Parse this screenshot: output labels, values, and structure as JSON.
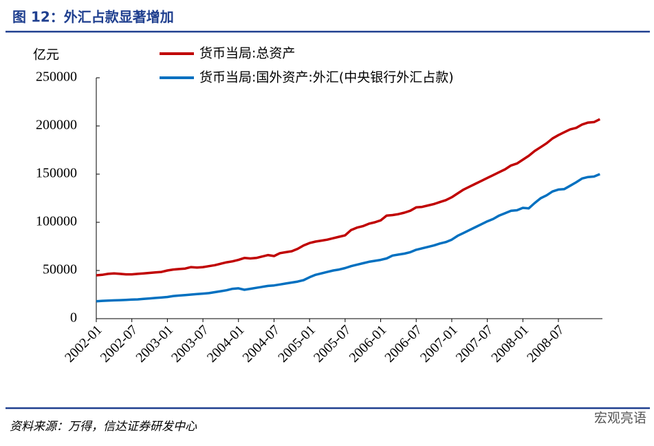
{
  "header": {
    "title": "图 12：外汇占款显著增加"
  },
  "footer": {
    "source": "资料来源：万得，信达证券研发中心",
    "watermark": "宏观亮语"
  },
  "chart_data": {
    "type": "line",
    "y_label": "亿元",
    "categories": [
      "2002-01",
      null,
      null,
      null,
      null,
      null,
      "2002-07",
      null,
      null,
      null,
      null,
      null,
      "2003-01",
      null,
      null,
      null,
      null,
      null,
      "2003-07",
      null,
      null,
      null,
      null,
      null,
      "2004-01",
      null,
      null,
      null,
      null,
      null,
      "2004-07",
      null,
      null,
      null,
      null,
      null,
      "2005-01",
      null,
      null,
      null,
      null,
      null,
      "2005-07",
      null,
      null,
      null,
      null,
      null,
      "2006-01",
      null,
      null,
      null,
      null,
      null,
      "2006-07",
      null,
      null,
      null,
      null,
      null,
      "2007-01",
      null,
      null,
      null,
      null,
      null,
      "2007-07",
      null,
      null,
      null,
      null,
      null,
      "2008-01",
      null,
      null,
      null,
      null,
      null,
      "2008-07",
      null,
      null,
      null,
      null,
      null,
      null,
      null
    ],
    "series": [
      {
        "name": "货币当局:总资产",
        "color": "#c00000",
        "values": [
          45000,
          45500,
          46500,
          47000,
          46500,
          46000,
          46000,
          46500,
          47000,
          47500,
          48000,
          48500,
          50000,
          51000,
          51500,
          52000,
          53500,
          53000,
          53500,
          54500,
          55500,
          57000,
          58500,
          59500,
          61000,
          63000,
          62500,
          63000,
          64500,
          66000,
          65000,
          68000,
          69000,
          70000,
          72500,
          76000,
          78500,
          80000,
          81000,
          82000,
          83500,
          85000,
          86500,
          92000,
          94500,
          96000,
          98500,
          100000,
          102000,
          107000,
          107500,
          108500,
          110000,
          112000,
          115500,
          116000,
          117500,
          119000,
          121000,
          123000,
          126000,
          130000,
          134000,
          137000,
          140000,
          143000,
          146000,
          149000,
          152000,
          155000,
          159000,
          161000,
          165000,
          169000,
          174000,
          178000,
          182000,
          187000,
          190500,
          193500,
          196500,
          198000,
          201500,
          203500,
          204000,
          207000
        ]
      },
      {
        "name": "货币当局:国外资产:外汇(中央银行外汇占款)",
        "color": "#0070c0",
        "values": [
          18000,
          18500,
          18700,
          19000,
          19200,
          19500,
          19800,
          20000,
          20500,
          21000,
          21500,
          22000,
          22500,
          23500,
          24000,
          24500,
          25000,
          25500,
          26000,
          26500,
          27500,
          28500,
          29500,
          31000,
          31500,
          30000,
          31000,
          32000,
          33000,
          34000,
          34500,
          35500,
          36500,
          37500,
          38500,
          40000,
          43000,
          45500,
          47000,
          48500,
          50000,
          51000,
          52500,
          54500,
          56000,
          57500,
          59000,
          60000,
          61000,
          62500,
          65500,
          66500,
          67500,
          69000,
          71500,
          73000,
          74500,
          76000,
          78000,
          79500,
          82000,
          86000,
          89000,
          92000,
          95000,
          98000,
          101000,
          103500,
          107000,
          109500,
          112000,
          112500,
          115000,
          114500,
          120000,
          125000,
          128000,
          132000,
          134000,
          134500,
          138000,
          141500,
          145500,
          147000,
          147500,
          150000
        ]
      }
    ],
    "ylim": [
      0,
      250000
    ],
    "yticks": [
      0,
      50000,
      100000,
      150000,
      200000,
      250000
    ]
  }
}
